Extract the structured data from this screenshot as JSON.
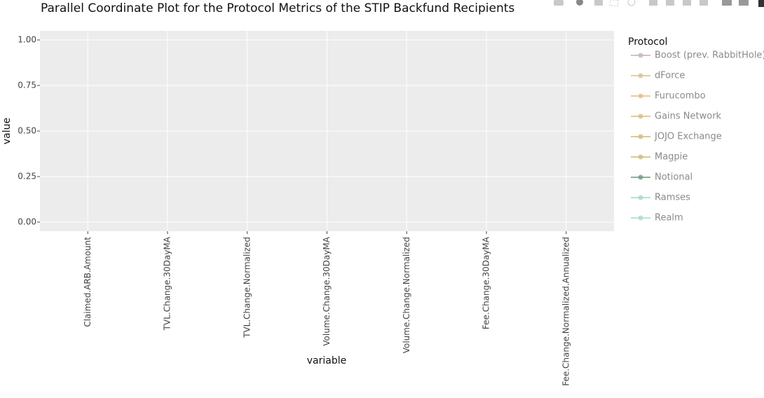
{
  "chart_data": {
    "type": "line",
    "title": "Parallel Coordinate Plot for the Protocol Metrics of the STIP Backfund Recipients",
    "x_label": "variable",
    "y_label": "value",
    "categories": [
      "Claimed.ARB.Amount",
      "TVL.Change.30DayMA",
      "TVL.Change.Normalized",
      "Volume.Change.30DayMA",
      "Volume.Change.Normalized",
      "Fee.Change.30DayMA",
      "Fee.Change.Normalized.Annualized"
    ],
    "ylim": [
      -0.05,
      1.05
    ],
    "yticks": [
      {
        "value": 0,
        "label": "0.00"
      },
      {
        "value": 0.25,
        "label": "0.25"
      },
      {
        "value": 0.5,
        "label": "0.50"
      },
      {
        "value": 0.75,
        "label": "0.75"
      },
      {
        "value": 1,
        "label": "1.00"
      }
    ],
    "grid": true,
    "legend_title": "Protocol",
    "legend_position": "right",
    "series_hidden": true,
    "series": [
      {
        "name": "Boost (prev. RabbitHole)",
        "color": "#c6b7b1"
      },
      {
        "name": "dForce",
        "color": "#dcc28e"
      },
      {
        "name": "Furucombo",
        "color": "#e0c184"
      },
      {
        "name": "Gains Network",
        "color": "#dcbe7f"
      },
      {
        "name": "JOJO Exchange",
        "color": "#d3bd7b"
      },
      {
        "name": "Magpie",
        "color": "#ccbe80"
      },
      {
        "name": "Notional",
        "color": "#6f9c7e"
      },
      {
        "name": "Ramses",
        "color": "#a6dacb"
      },
      {
        "name": "Realm",
        "color": "#a9dbcf"
      }
    ]
  }
}
